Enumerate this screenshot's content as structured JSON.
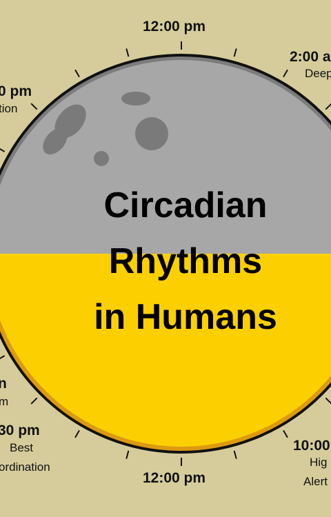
{
  "title": {
    "line1": "Circadian",
    "line2": "Rhythms",
    "line3": "in Humans"
  },
  "labels": {
    "top": {
      "time": "12:00 pm"
    },
    "bottom": {
      "time": "12:00 pm"
    },
    "upper_right": {
      "time": "2:00 a",
      "desc": "Deep"
    },
    "upper_left": {
      "time": "0 pm",
      "desc": "tion"
    },
    "left_mid": {
      "time": "n",
      "desc": "m"
    },
    "lower_left": {
      "time": "30 pm",
      "desc_1": "Best",
      "desc_2": "ordination"
    },
    "lower_right": {
      "time": "10:00",
      "desc_1": "Hig",
      "desc_2": "Alert"
    }
  },
  "colors": {
    "background": "#d6cc9b",
    "night": "#a7a7a7",
    "night_rim": "#7c7c7c",
    "crater": "#7a7a7a",
    "day": "#fcd000",
    "day_rim": "#dc9a12",
    "outline": "#111111"
  }
}
